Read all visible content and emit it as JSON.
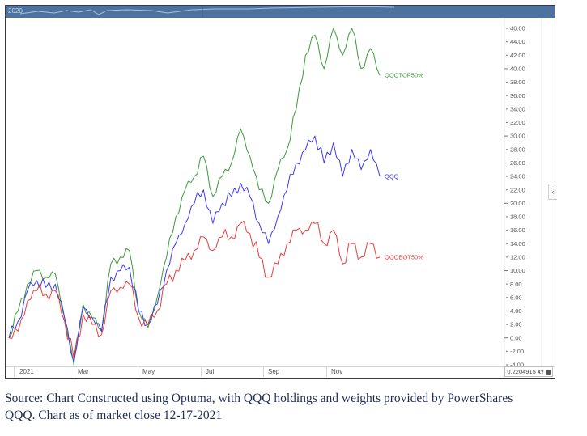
{
  "overview": {
    "label": "2020"
  },
  "chart_data": {
    "type": "line",
    "title": "",
    "xlabel": "",
    "ylabel": "",
    "ylim": [
      -4,
      47
    ],
    "y_ticks": [
      "46.00",
      "44.00",
      "42.00",
      "40.00",
      "38.00",
      "36.00",
      "34.00",
      "32.00",
      "30.00",
      "28.00",
      "26.00",
      "24.00",
      "22.00",
      "20.00",
      "18.00",
      "16.00",
      "14.00",
      "12.00",
      "10.00",
      "8.00",
      "6.00",
      "4.00",
      "2.00",
      "0.00",
      "-2.00",
      "-4.00"
    ],
    "x_ticks": [
      "2021",
      "Mar",
      "May",
      "Jul",
      "Sep",
      "Nov"
    ],
    "grid": false,
    "legend_position": "inline-right",
    "x": [
      "Jan-04",
      "Jan-15",
      "Jan-26",
      "Feb-05",
      "Feb-12",
      "Feb-19",
      "Mar-01",
      "Mar-05",
      "Mar-12",
      "Mar-19",
      "Mar-26",
      "Apr-05",
      "Apr-16",
      "Apr-26",
      "May-06",
      "May-12",
      "May-20",
      "Jun-01",
      "Jun-14",
      "Jun-28",
      "Jul-07",
      "Jul-19",
      "Jul-29",
      "Aug-10",
      "Aug-20",
      "Aug-31",
      "Sep-10",
      "Sep-20",
      "Sep-30",
      "Oct-04",
      "Oct-13",
      "Oct-25",
      "Nov-03",
      "Nov-12",
      "Nov-19",
      "Nov-26",
      "Nov-30",
      "Dec-03",
      "Dec-08",
      "Dec-13",
      "Dec-17"
    ],
    "series": [
      {
        "name": "QQQTOP50%",
        "color": "#3c9a3c",
        "values": [
          0,
          4,
          8,
          10,
          9,
          9.5,
          3,
          -4,
          5,
          3,
          1,
          11,
          12,
          13,
          4,
          1.5,
          6,
          12,
          18,
          22,
          24,
          27,
          21,
          24,
          26,
          31,
          27,
          22,
          20,
          25,
          28,
          34,
          42,
          45,
          40,
          46,
          42,
          46,
          40,
          43,
          39
        ]
      },
      {
        "name": "QQQ",
        "color": "#3b3bf0",
        "values": [
          0,
          2.5,
          7,
          8.5,
          7.5,
          8,
          3,
          -3.5,
          4.5,
          3,
          1,
          9,
          10,
          10.5,
          4,
          2,
          5,
          10,
          14,
          17,
          20,
          22,
          17,
          20,
          21,
          23,
          21,
          17,
          14,
          18,
          22,
          26,
          28,
          30,
          26,
          29,
          24,
          28,
          25,
          28,
          24
        ]
      },
      {
        "name": "QQQBOT50%",
        "color": "#e83b3b",
        "values": [
          0,
          1,
          5.5,
          7,
          6.5,
          7,
          2.5,
          -3,
          3.5,
          2,
          0.5,
          7,
          7.5,
          8,
          3,
          2,
          4,
          8,
          10,
          11.5,
          13,
          15,
          13,
          15,
          15,
          17,
          15.5,
          12,
          9,
          11,
          14,
          16,
          16,
          17,
          14,
          16,
          11,
          14,
          12,
          14,
          12
        ]
      }
    ]
  },
  "status": {
    "cursor_value": "0.2204915",
    "xy_label": "XY"
  },
  "caption": {
    "line1": "Source: Chart Constructed using Optuma, with QQQ holdings and weights provided by PowerShares",
    "line2": "QQQ.  Chart as of market close 12-17-2021"
  }
}
